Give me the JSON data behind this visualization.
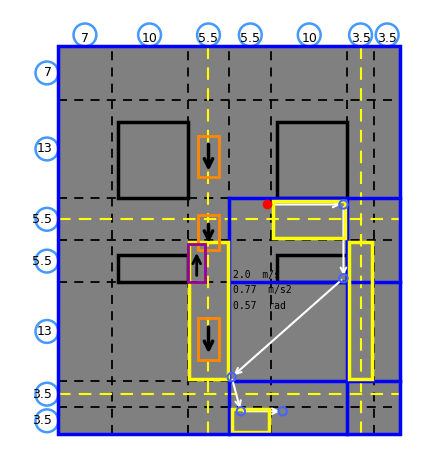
{
  "top_labels": [
    "7",
    "10",
    "5.5",
    "5.5",
    "10",
    "3.5",
    "3.5"
  ],
  "left_labels": [
    "7",
    "13",
    "5.5",
    "5.5",
    "13",
    "3.5",
    "3.5"
  ],
  "col_bounds": [
    0,
    7,
    17,
    22.5,
    28,
    38,
    41.5,
    45
  ],
  "row_bounds": [
    0,
    7,
    20,
    25.5,
    31,
    44,
    47.5,
    51
  ],
  "gray_bg": "#808080",
  "blue": "#0000FF",
  "yellow": "#FFFF00",
  "orange": "#FF8800",
  "black": "#000000",
  "white": "#FFFFFF",
  "red": "#FF0000",
  "purple": "#990099",
  "lightblue": "#4499FF",
  "gray_arrow": "#AAAAAA"
}
